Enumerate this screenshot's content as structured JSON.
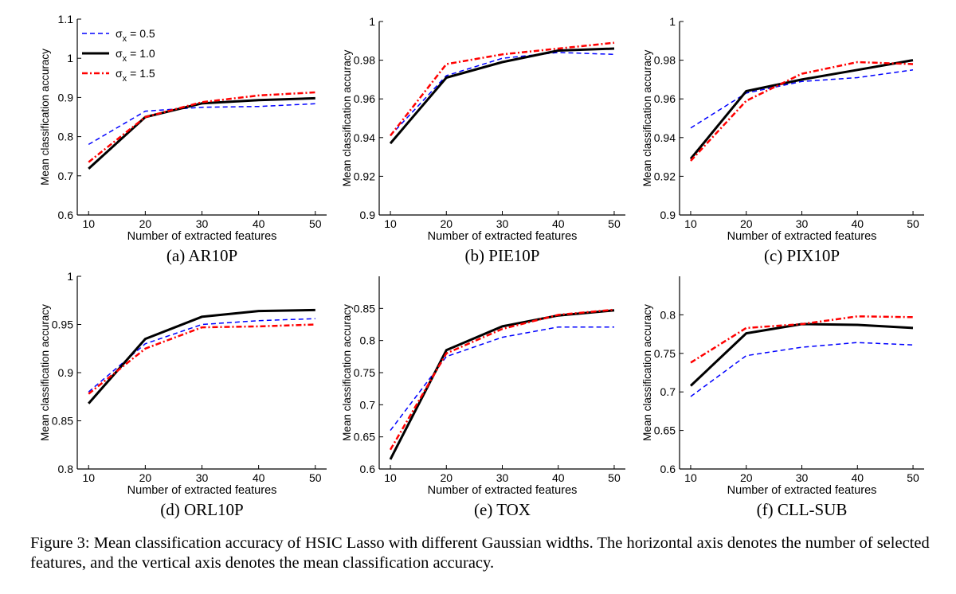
{
  "styles": {
    "series_colors": [
      "#0000ff",
      "#000000",
      "#ff0000"
    ]
  },
  "legend": [
    {
      "sigma": "σ",
      "sub": "x",
      "text": "= 0.5"
    },
    {
      "sigma": "σ",
      "sub": "x",
      "text": "= 1.0"
    },
    {
      "sigma": "σ",
      "sub": "x",
      "text": "= 1.5"
    }
  ],
  "chart_data": [
    {
      "type": "line",
      "caption": "(a) AR10P",
      "xlabel": "Number of extracted features",
      "ylabel": "Mean classification accuracy",
      "x": [
        10,
        20,
        30,
        40,
        50
      ],
      "xlim": [
        8,
        52
      ],
      "ylim": [
        0.6,
        1.1
      ],
      "yticks": [
        "0.6",
        "0.7",
        "0.8",
        "0.9",
        "1",
        "1.1"
      ],
      "has_legend": true,
      "series": [
        {
          "name": "σx = 0.5",
          "values": [
            0.78,
            0.865,
            0.875,
            0.877,
            0.884
          ]
        },
        {
          "name": "σx = 1.0",
          "values": [
            0.718,
            0.85,
            0.885,
            0.893,
            0.898
          ]
        },
        {
          "name": "σx = 1.5",
          "values": [
            0.735,
            0.85,
            0.888,
            0.905,
            0.913
          ]
        }
      ]
    },
    {
      "type": "line",
      "caption": "(b) PIE10P",
      "xlabel": "Number of extracted features",
      "ylabel": "Mean classification accuracy",
      "x": [
        10,
        20,
        30,
        40,
        50
      ],
      "xlim": [
        8,
        52
      ],
      "ylim": [
        0.9,
        1.0
      ],
      "yticks": [
        "0.9",
        "0.92",
        "0.94",
        "0.96",
        "0.98",
        "1"
      ],
      "has_legend": false,
      "series": [
        {
          "name": "σx = 0.5",
          "values": [
            0.941,
            0.972,
            0.981,
            0.984,
            0.983
          ]
        },
        {
          "name": "σx = 1.0",
          "values": [
            0.937,
            0.971,
            0.979,
            0.985,
            0.986
          ]
        },
        {
          "name": "σx = 1.5",
          "values": [
            0.941,
            0.978,
            0.983,
            0.986,
            0.989
          ]
        }
      ]
    },
    {
      "type": "line",
      "caption": "(c) PIX10P",
      "xlabel": "Number of extracted features",
      "ylabel": "Mean classification accuracy",
      "x": [
        10,
        20,
        30,
        40,
        50
      ],
      "xlim": [
        8,
        52
      ],
      "ylim": [
        0.9,
        1.0
      ],
      "yticks": [
        "0.9",
        "0.92",
        "0.94",
        "0.96",
        "0.98",
        "1"
      ],
      "has_legend": false,
      "series": [
        {
          "name": "σx = 0.5",
          "values": [
            0.945,
            0.963,
            0.969,
            0.971,
            0.975
          ]
        },
        {
          "name": "σx = 1.0",
          "values": [
            0.929,
            0.964,
            0.97,
            0.975,
            0.98
          ]
        },
        {
          "name": "σx = 1.5",
          "values": [
            0.928,
            0.959,
            0.973,
            0.979,
            0.978
          ]
        }
      ]
    },
    {
      "type": "line",
      "caption": "(d) ORL10P",
      "xlabel": "Number of extracted features",
      "ylabel": "Mean classification accuracy",
      "x": [
        10,
        20,
        30,
        40,
        50
      ],
      "xlim": [
        8,
        52
      ],
      "ylim": [
        0.8,
        1.0
      ],
      "yticks": [
        "0.8",
        "0.85",
        "0.9",
        "0.95",
        "1"
      ],
      "has_legend": false,
      "series": [
        {
          "name": "σx = 0.5",
          "values": [
            0.88,
            0.93,
            0.95,
            0.954,
            0.956
          ]
        },
        {
          "name": "σx = 1.0",
          "values": [
            0.868,
            0.935,
            0.958,
            0.964,
            0.965
          ]
        },
        {
          "name": "σx = 1.5",
          "values": [
            0.878,
            0.925,
            0.947,
            0.948,
            0.95
          ]
        }
      ]
    },
    {
      "type": "line",
      "caption": "(e) TOX",
      "xlabel": "Number of extracted features",
      "ylabel": "Mean classification accuracy",
      "x": [
        10,
        20,
        30,
        40,
        50
      ],
      "xlim": [
        8,
        52
      ],
      "ylim": [
        0.6,
        0.9
      ],
      "yticks": [
        "0.6",
        "0.65",
        "0.7",
        "0.75",
        "0.8",
        "0.85"
      ],
      "has_legend": false,
      "series": [
        {
          "name": "σx = 0.5",
          "values": [
            0.66,
            0.775,
            0.805,
            0.821,
            0.821
          ]
        },
        {
          "name": "σx = 1.0",
          "values": [
            0.615,
            0.785,
            0.822,
            0.839,
            0.847
          ]
        },
        {
          "name": "σx = 1.5",
          "values": [
            0.63,
            0.78,
            0.818,
            0.84,
            0.848
          ]
        }
      ]
    },
    {
      "type": "line",
      "caption": "(f) CLL-SUB",
      "xlabel": "Number of extracted features",
      "ylabel": "Mean classification accuracy",
      "x": [
        10,
        20,
        30,
        40,
        50
      ],
      "xlim": [
        8,
        52
      ],
      "ylim": [
        0.6,
        0.85
      ],
      "yticks": [
        "0.6",
        "0.65",
        "0.7",
        "0.75",
        "0.8"
      ],
      "has_legend": false,
      "series": [
        {
          "name": "σx = 0.5",
          "values": [
            0.694,
            0.747,
            0.758,
            0.764,
            0.761
          ]
        },
        {
          "name": "σx = 1.0",
          "values": [
            0.708,
            0.776,
            0.788,
            0.787,
            0.783
          ]
        },
        {
          "name": "σx = 1.5",
          "values": [
            0.738,
            0.783,
            0.788,
            0.798,
            0.797
          ]
        }
      ]
    }
  ],
  "caption": "Figure 3: Mean classification accuracy of HSIC Lasso with different Gaussian widths. The horizontal axis denotes the number of selected features, and the vertical axis denotes the mean classification accuracy."
}
